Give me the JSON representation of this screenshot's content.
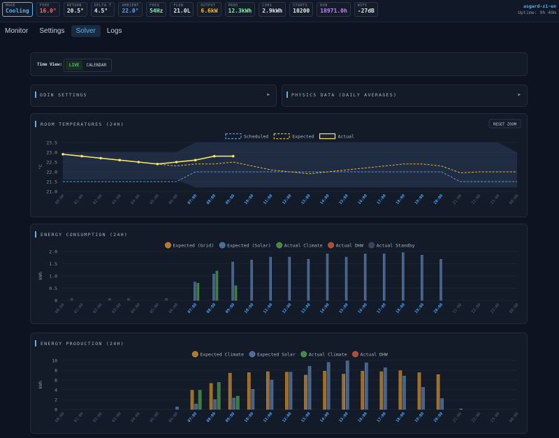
{
  "status": [
    {
      "label": "MODE",
      "value": "Cooling",
      "color": "#5ab4f0"
    },
    {
      "label": "FEED",
      "value": "16.0°",
      "color": "#f87171"
    },
    {
      "label": "RETURN",
      "value": "20.5°",
      "color": "#e5e7eb"
    },
    {
      "label": "DELTA T",
      "value": "4.5°",
      "color": "#e5e7eb"
    },
    {
      "label": "AMBIENT",
      "value": "22.0°",
      "color": "#60a5fa"
    },
    {
      "label": "FREQ",
      "value": "54Hz",
      "color": "#86efac"
    },
    {
      "label": "FLOW",
      "value": "21.0L",
      "color": "#e5e7eb"
    },
    {
      "label": "OUTPUT",
      "value": "6.6kW",
      "color": "#fbbf24"
    },
    {
      "label": "PROD",
      "value": "12.3kWh",
      "color": "#86efac"
    },
    {
      "label": "CONS",
      "value": "2.9kWh",
      "color": "#e5e7eb"
    },
    {
      "label": "STARTS",
      "value": "10200",
      "color": "#e5e7eb"
    },
    {
      "label": "RUN",
      "value": "18971.0h",
      "color": "#c084fc"
    },
    {
      "label": "WIFI",
      "value": "-27dB",
      "color": "#e5e7eb"
    }
  ],
  "device": {
    "name": "asgard-z1-en",
    "uptime": "Uptime: 9h 49m"
  },
  "tabs": [
    "Monitor",
    "Settings",
    "Solver",
    "Logs"
  ],
  "active_tab": 2,
  "time_view": {
    "label": "Time View:",
    "options": [
      "LIVE",
      "CALENDAR"
    ],
    "active": 0
  },
  "sections": [
    {
      "title": "ODIN SETTINGS"
    },
    {
      "title": "PHYSICS DATA (DAILY AVERAGES)"
    }
  ],
  "reset_button": "RESET ZOOM",
  "chart_data": [
    {
      "type": "line",
      "title": "ROOM TEMPERATURES (24H)",
      "y_label": "°C",
      "categories": [
        "00:00",
        "01:00",
        "02:00",
        "03:00",
        "04:00",
        "05:00",
        "06:00",
        "07:00",
        "08:00",
        "09:00",
        "10:00",
        "11:00",
        "12:00",
        "13:00",
        "14:00",
        "15:00",
        "16:00",
        "17:00",
        "18:00",
        "19:00",
        "20:00",
        "21:00",
        "22:00",
        "23:00",
        "00:00"
      ],
      "label_colors": [
        "#56657a",
        "#56657a",
        "#56657a",
        "#56657a",
        "#56657a",
        "#56657a",
        "#56657a",
        "#4da6ff",
        "#4da6ff",
        "#4da6ff",
        "#4da6ff",
        "#4da6ff",
        "#4da6ff",
        "#4da6ff",
        "#4da6ff",
        "#4da6ff",
        "#4da6ff",
        "#4da6ff",
        "#4da6ff",
        "#4da6ff",
        "#4da6ff",
        "#56657a",
        "#56657a",
        "#56657a",
        "#56657a"
      ],
      "ylim": [
        21.0,
        23.5
      ],
      "yticks": [
        {
          "value": 21,
          "label": "21.0"
        },
        21.5,
        {
          "value": 22,
          "label": "22.0"
        },
        22.5,
        {
          "value": 23,
          "label": "23.0"
        },
        23.5
      ],
      "grid": true,
      "band": {
        "color": "#2a3a55",
        "upper": [
          23.0,
          23.0,
          23.0,
          23.0,
          23.0,
          23.0,
          23.0,
          23.5,
          23.5,
          23.5,
          23.5,
          23.5,
          23.5,
          23.5,
          23.5,
          23.5,
          23.5,
          23.5,
          23.5,
          23.5,
          23.5,
          23.5,
          23.5,
          23.5,
          23.0
        ],
        "lower": [
          21.6,
          21.6,
          21.6,
          21.6,
          21.6,
          21.6,
          21.6,
          21.2,
          21.2,
          21.2,
          21.2,
          21.2,
          21.2,
          21.2,
          21.2,
          21.2,
          21.2,
          21.2,
          21.2,
          21.2,
          21.2,
          21.2,
          21.2,
          21.2,
          21.2
        ]
      },
      "series": [
        {
          "name": "Scheduled",
          "color": "#5b9bd5",
          "dashed": true,
          "markers": false,
          "values": [
            21.5,
            21.5,
            21.5,
            21.5,
            21.5,
            21.5,
            21.5,
            22.0,
            22.0,
            22.0,
            22.0,
            22.0,
            22.0,
            22.0,
            22.0,
            22.0,
            22.0,
            22.0,
            22.0,
            22.0,
            22.0,
            21.5,
            21.5,
            21.5,
            21.5
          ]
        },
        {
          "name": "Expected",
          "color": "#e5b53a",
          "dashed": true,
          "markers": false,
          "values": [
            22.9,
            22.8,
            22.7,
            22.6,
            22.5,
            22.4,
            22.3,
            22.4,
            22.4,
            22.5,
            22.3,
            22.1,
            22.0,
            21.9,
            22.0,
            22.1,
            22.2,
            22.3,
            22.4,
            22.4,
            22.3,
            21.95,
            22.0,
            22.0,
            22.0
          ]
        },
        {
          "name": "Actual",
          "color": "#f5e663",
          "dashed": false,
          "markers": true,
          "values": [
            22.9,
            22.8,
            22.7,
            22.6,
            22.5,
            22.4,
            22.5,
            22.6,
            22.8,
            22.8,
            null,
            null,
            null,
            null,
            null,
            null,
            null,
            null,
            null,
            null,
            null,
            null,
            null,
            null,
            null
          ]
        }
      ]
    },
    {
      "type": "bar",
      "title": "ENERGY CONSUMPTION (24H)",
      "y_label": "kWh",
      "categories": [
        "00:00",
        "01:00",
        "02:00",
        "03:00",
        "04:00",
        "05:00",
        "06:00",
        "07:00",
        "08:00",
        "09:00",
        "10:00",
        "11:00",
        "12:00",
        "13:00",
        "14:00",
        "15:00",
        "16:00",
        "17:00",
        "18:00",
        "19:00",
        "20:00",
        "21:00",
        "22:00",
        "23:00",
        "00:00"
      ],
      "label_colors": [
        "#56657a",
        "#56657a",
        "#56657a",
        "#56657a",
        "#56657a",
        "#56657a",
        "#56657a",
        "#4da6ff",
        "#4da6ff",
        "#4da6ff",
        "#4da6ff",
        "#4da6ff",
        "#4da6ff",
        "#4da6ff",
        "#4da6ff",
        "#4da6ff",
        "#4da6ff",
        "#4da6ff",
        "#4da6ff",
        "#4da6ff",
        "#4da6ff",
        "#56657a",
        "#56657a",
        "#56657a",
        "#56657a"
      ],
      "ylim": [
        0,
        2.0
      ],
      "yticks": [
        0,
        0.5,
        {
          "value": 1,
          "label": "1.0"
        },
        1.5,
        {
          "value": 2,
          "label": "2.0"
        }
      ],
      "grid": true,
      "series": [
        {
          "name": "Expected (Grid)",
          "color": "#c98a2e",
          "values": [
            0,
            0,
            0,
            0,
            0,
            0,
            0,
            0,
            0,
            0,
            0,
            0,
            0,
            0,
            0,
            0,
            0,
            0,
            0,
            0,
            0,
            0,
            0,
            0,
            null
          ]
        },
        {
          "name": "Expected (Solar)",
          "color": "#5a7aa8",
          "values": [
            0,
            0,
            0,
            0,
            0,
            0,
            0,
            0.75,
            1.08,
            1.57,
            1.65,
            1.77,
            1.77,
            1.68,
            1.9,
            1.77,
            1.9,
            1.9,
            1.95,
            1.85,
            1.68,
            0,
            0,
            0,
            null
          ]
        },
        {
          "name": "Actual Climate",
          "color": "#4f9a4a",
          "values": [
            0,
            0,
            0,
            0,
            0,
            0,
            0,
            0.7,
            1.2,
            0.6,
            null,
            null,
            null,
            null,
            null,
            null,
            null,
            null,
            null,
            null,
            null,
            null,
            null,
            null,
            null
          ]
        },
        {
          "name": "Actual DHW",
          "color": "#c0583c",
          "values": [
            0,
            0,
            0,
            0,
            0,
            0,
            0,
            0,
            0,
            0,
            null,
            null,
            null,
            null,
            null,
            null,
            null,
            null,
            null,
            null,
            null,
            null,
            null,
            null,
            null
          ]
        },
        {
          "name": "Actual Standby",
          "color": "#3f4b5e",
          "values": [
            0.08,
            0,
            0.08,
            0.08,
            0,
            0.08,
            0,
            0,
            0,
            0,
            null,
            null,
            null,
            null,
            null,
            null,
            null,
            null,
            null,
            null,
            null,
            null,
            null,
            null,
            null
          ]
        }
      ]
    },
    {
      "type": "bar",
      "title": "ENERGY PRODUCTION (24H)",
      "y_label": "kWh",
      "categories": [
        "00:00",
        "01:00",
        "02:00",
        "03:00",
        "04:00",
        "05:00",
        "06:00",
        "07:00",
        "08:00",
        "09:00",
        "10:00",
        "11:00",
        "12:00",
        "13:00",
        "14:00",
        "15:00",
        "16:00",
        "17:00",
        "18:00",
        "19:00",
        "20:00",
        "21:00",
        "22:00",
        "23:00",
        "00:00"
      ],
      "label_colors": [
        "#56657a",
        "#56657a",
        "#56657a",
        "#56657a",
        "#56657a",
        "#56657a",
        "#56657a",
        "#4da6ff",
        "#4da6ff",
        "#4da6ff",
        "#4da6ff",
        "#4da6ff",
        "#4da6ff",
        "#4da6ff",
        "#4da6ff",
        "#4da6ff",
        "#4da6ff",
        "#4da6ff",
        "#4da6ff",
        "#4da6ff",
        "#4da6ff",
        "#56657a",
        "#56657a",
        "#56657a",
        "#56657a"
      ],
      "ylim": [
        0,
        10
      ],
      "yticks": [
        0,
        2,
        4,
        6,
        8,
        10
      ],
      "grid": true,
      "series": [
        {
          "name": "Expected Climate",
          "color": "#c98a2e",
          "values": [
            0,
            0,
            0,
            0,
            0,
            0,
            0,
            3.9,
            5.3,
            7.4,
            7.5,
            7.7,
            7.6,
            7.0,
            7.8,
            7.2,
            7.8,
            7.7,
            7.9,
            7.5,
            7.1,
            0,
            0,
            0,
            null
          ]
        },
        {
          "name": "Expected Solar",
          "color": "#5a7aa8",
          "values": [
            0,
            0,
            0,
            0,
            0,
            0,
            0.5,
            1.1,
            2.0,
            2.3,
            4.1,
            6.0,
            7.6,
            8.8,
            9.6,
            9.9,
            9.5,
            8.5,
            6.8,
            4.5,
            2.2,
            0.1,
            0,
            0,
            null
          ]
        },
        {
          "name": "Actual Climate",
          "color": "#4f9a4a",
          "values": [
            0,
            0,
            0,
            0,
            0,
            0,
            0,
            3.9,
            5.5,
            2.7,
            null,
            null,
            null,
            null,
            null,
            null,
            null,
            null,
            null,
            null,
            null,
            null,
            null,
            null,
            null
          ]
        },
        {
          "name": "Actual DHW",
          "color": "#c0583c",
          "values": [
            0,
            0,
            0,
            0,
            0,
            0,
            0,
            0,
            0,
            0,
            null,
            null,
            null,
            null,
            null,
            null,
            null,
            null,
            null,
            null,
            null,
            null,
            null,
            null,
            null
          ]
        }
      ]
    }
  ]
}
